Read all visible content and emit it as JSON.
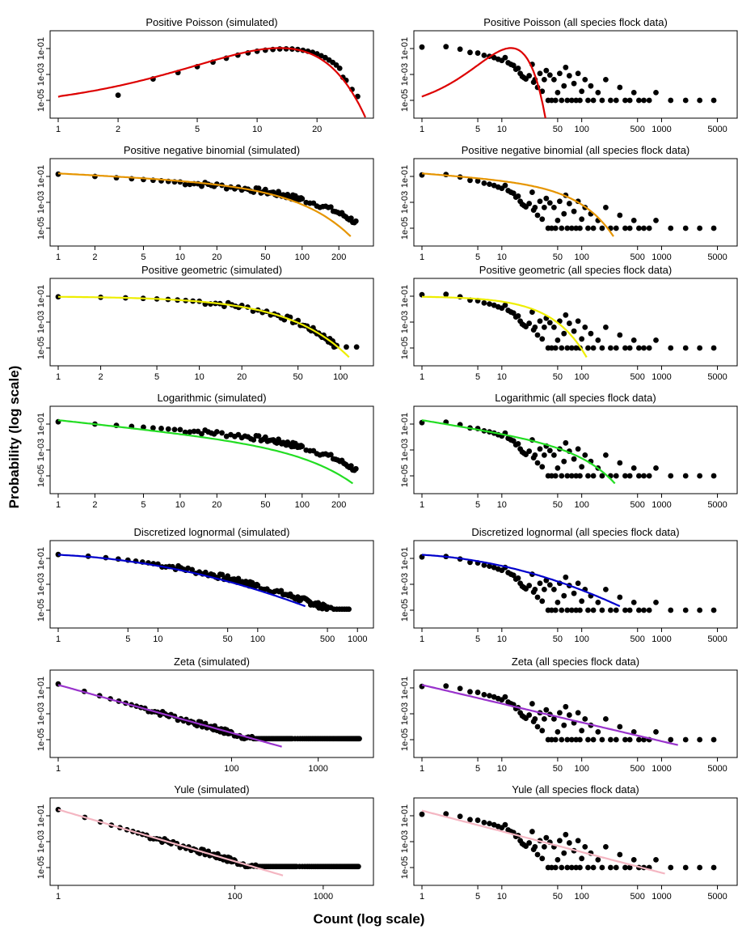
{
  "figure": {
    "xlabel": "Count (log scale)",
    "ylabel": "Probability (log scale)"
  },
  "chart_data": [
    {
      "type": "scatter",
      "title": "Positive Poisson (simulated)",
      "fit_color": "#dd0000",
      "xlog": true,
      "ylog": true,
      "xlim": [
        1,
        35
      ],
      "ylim": [
        1e-06,
        1
      ],
      "xticks": [
        1,
        2,
        5,
        10,
        20
      ],
      "xtick_labels": [
        "1",
        "2",
        "5",
        "10",
        "20"
      ],
      "yticks": [
        1e-05,
        0.001,
        0.1
      ],
      "ytick_labels": [
        "1e-05",
        "1e-03",
        "1e-01"
      ],
      "points": [
        [
          2,
          2.5e-05
        ],
        [
          3,
          0.00045
        ],
        [
          4,
          0.0014
        ],
        [
          5,
          0.004
        ],
        [
          6,
          0.009
        ],
        [
          7,
          0.018
        ],
        [
          8,
          0.031
        ],
        [
          9,
          0.046
        ],
        [
          10,
          0.062
        ],
        [
          11,
          0.075
        ],
        [
          12,
          0.085
        ],
        [
          13,
          0.093
        ],
        [
          14,
          0.095
        ],
        [
          15,
          0.092
        ],
        [
          16,
          0.085
        ],
        [
          17,
          0.074
        ],
        [
          18,
          0.062
        ],
        [
          19,
          0.051
        ],
        [
          20,
          0.039
        ],
        [
          21,
          0.028
        ],
        [
          22,
          0.02
        ],
        [
          23,
          0.013
        ],
        [
          24,
          0.0085
        ],
        [
          25,
          0.0053
        ],
        [
          26,
          0.003
        ],
        [
          27,
          0.0006
        ],
        [
          28,
          0.00035
        ],
        [
          30,
          7e-05
        ],
        [
          32,
          2e-05
        ]
      ],
      "fit": {
        "kind": "poisson",
        "mean": 13.5,
        "x": [
          1,
          35
        ]
      }
    },
    {
      "type": "scatter",
      "title": "Positive Poisson (all species flock data)",
      "fit_color": "#dd0000",
      "xlog": true,
      "ylog": true,
      "xlim": [
        1,
        7000
      ],
      "ylim": [
        1e-06,
        1
      ],
      "xticks": [
        1,
        5,
        10,
        50,
        100,
        500,
        1000,
        5000
      ],
      "xtick_labels": [
        "1",
        "5",
        "10",
        "50",
        "100",
        "500",
        "1000",
        "5000"
      ],
      "yticks": [
        1e-05,
        0.001,
        0.1
      ],
      "ytick_labels": [
        "1e-05",
        "1e-03",
        "1e-01"
      ],
      "points": "flock",
      "fit": {
        "kind": "poisson",
        "mean": 13.5,
        "x": [
          1,
          40
        ]
      }
    },
    {
      "type": "scatter",
      "title": "Positive negative binomial (simulated)",
      "fit_color": "#e69500",
      "xlog": true,
      "ylog": true,
      "xlim": [
        1,
        330
      ],
      "ylim": [
        1e-06,
        1
      ],
      "xticks": [
        1,
        2,
        5,
        10,
        20,
        50,
        100,
        200
      ],
      "xtick_labels": [
        "1",
        "2",
        "5",
        "10",
        "20",
        "50",
        "100",
        "200"
      ],
      "yticks": [
        1e-05,
        0.001,
        0.1
      ],
      "ytick_labels": [
        "1e-05",
        "1e-03",
        "1e-01"
      ],
      "points": "sim_tail",
      "fit": {
        "kind": "powerexp",
        "a": 0.17,
        "alpha": 0.45,
        "beta": 0.035,
        "x": [
          1,
          250
        ]
      }
    },
    {
      "type": "scatter",
      "title": "Positive negative binomial (all species flock data)",
      "fit_color": "#e69500",
      "xlog": true,
      "ylog": true,
      "xlim": [
        1,
        7000
      ],
      "ylim": [
        1e-06,
        1
      ],
      "xticks": [
        1,
        5,
        10,
        50,
        100,
        500,
        1000,
        5000
      ],
      "xtick_labels": [
        "1",
        "5",
        "10",
        "50",
        "100",
        "500",
        "1000",
        "5000"
      ],
      "yticks": [
        1e-05,
        0.001,
        0.1
      ],
      "ytick_labels": [
        "1e-05",
        "1e-03",
        "1e-01"
      ],
      "points": "flock",
      "fit": {
        "kind": "powerexp",
        "a": 0.17,
        "alpha": 0.45,
        "beta": 0.035,
        "x": [
          1,
          250
        ]
      }
    },
    {
      "type": "scatter",
      "title": "Positive geometric (simulated)",
      "fit_color": "#eeee00",
      "xlog": true,
      "ylog": true,
      "xlim": [
        1,
        150
      ],
      "ylim": [
        1e-06,
        1
      ],
      "xticks": [
        1,
        2,
        5,
        10,
        20,
        50,
        100
      ],
      "xtick_labels": [
        "1",
        "2",
        "5",
        "10",
        "20",
        "50",
        "100"
      ],
      "yticks": [
        1e-05,
        0.001,
        0.1
      ],
      "ytick_labels": [
        "1e-05",
        "1e-03",
        "1e-01"
      ],
      "points": "geom_sim",
      "fit": {
        "kind": "geometric",
        "p": 0.09,
        "x": [
          1,
          115
        ]
      }
    },
    {
      "type": "scatter",
      "title": "Positive geometric (all species flock data)",
      "fit_color": "#eeee00",
      "xlog": true,
      "ylog": true,
      "xlim": [
        1,
        7000
      ],
      "ylim": [
        1e-06,
        1
      ],
      "xticks": [
        1,
        5,
        10,
        50,
        100,
        500,
        1000,
        5000
      ],
      "xtick_labels": [
        "1",
        "5",
        "10",
        "50",
        "100",
        "500",
        "1000",
        "5000"
      ],
      "yticks": [
        1e-05,
        0.001,
        0.1
      ],
      "ytick_labels": [
        "1e-05",
        "1e-03",
        "1e-01"
      ],
      "points": "flock",
      "fit": {
        "kind": "geometric",
        "p": 0.09,
        "x": [
          1,
          115
        ]
      }
    },
    {
      "type": "scatter",
      "title": "Logarithmic (simulated)",
      "fit_color": "#22dd22",
      "xlog": true,
      "ylog": true,
      "xlim": [
        1,
        330
      ],
      "ylim": [
        1e-06,
        1
      ],
      "xticks": [
        1,
        2,
        5,
        10,
        20,
        50,
        100,
        200
      ],
      "xtick_labels": [
        "1",
        "2",
        "5",
        "10",
        "20",
        "50",
        "100",
        "200"
      ],
      "yticks": [
        1e-05,
        0.001,
        0.1
      ],
      "ytick_labels": [
        "1e-05",
        "1e-03",
        "1e-01"
      ],
      "points": "sim_tail",
      "fit": {
        "kind": "powerexp",
        "a": 0.2,
        "alpha": 1.0,
        "beta": 0.022,
        "x": [
          1,
          260
        ]
      }
    },
    {
      "type": "scatter",
      "title": "Logarithmic (all species flock data)",
      "fit_color": "#22dd22",
      "xlog": true,
      "ylog": true,
      "xlim": [
        1,
        7000
      ],
      "ylim": [
        1e-06,
        1
      ],
      "xticks": [
        1,
        5,
        10,
        50,
        100,
        500,
        1000,
        5000
      ],
      "xtick_labels": [
        "1",
        "5",
        "10",
        "50",
        "100",
        "500",
        "1000",
        "5000"
      ],
      "yticks": [
        1e-05,
        0.001,
        0.1
      ],
      "ytick_labels": [
        "1e-05",
        "1e-03",
        "1e-01"
      ],
      "points": "flock",
      "fit": {
        "kind": "powerexp",
        "a": 0.2,
        "alpha": 1.0,
        "beta": 0.022,
        "x": [
          1,
          260
        ]
      }
    },
    {
      "type": "scatter",
      "title": "Discretized lognormal (simulated)",
      "fit_color": "#0000cc",
      "xlog": true,
      "ylog": true,
      "xlim": [
        1,
        1200
      ],
      "ylim": [
        1e-06,
        1
      ],
      "xticks": [
        1,
        5,
        10,
        50,
        100,
        500,
        1000
      ],
      "xtick_labels": [
        "1",
        "5",
        "10",
        "50",
        "100",
        "500",
        "1000"
      ],
      "yticks": [
        1e-05,
        0.001,
        0.1
      ],
      "ytick_labels": [
        "1e-05",
        "1e-03",
        "1e-01"
      ],
      "points": "lognorm_sim",
      "fit": {
        "kind": "lognormal",
        "a": 0.19,
        "b": 0.35,
        "c": 0.22,
        "x": [
          1,
          300
        ]
      }
    },
    {
      "type": "scatter",
      "title": "Discretized lognormal (all species flock data)",
      "fit_color": "#0000cc",
      "xlog": true,
      "ylog": true,
      "xlim": [
        1,
        7000
      ],
      "ylim": [
        1e-06,
        1
      ],
      "xticks": [
        1,
        5,
        10,
        50,
        100,
        500,
        1000,
        5000
      ],
      "xtick_labels": [
        "1",
        "5",
        "10",
        "50",
        "100",
        "500",
        "1000",
        "5000"
      ],
      "yticks": [
        1e-05,
        0.001,
        0.1
      ],
      "ytick_labels": [
        "1e-05",
        "1e-03",
        "1e-01"
      ],
      "points": "flock",
      "fit": {
        "kind": "lognormal",
        "a": 0.19,
        "b": 0.35,
        "c": 0.22,
        "x": [
          1,
          300
        ]
      }
    },
    {
      "type": "scatter",
      "title": "Zeta (simulated)",
      "fit_color": "#9933cc",
      "xlog": true,
      "ylog": true,
      "xlim": [
        1,
        3500
      ],
      "ylim": [
        1e-06,
        1
      ],
      "xticks": [
        1,
        100,
        1000
      ],
      "xtick_labels": [
        "1",
        "100",
        "1000"
      ],
      "yticks": [
        1e-05,
        0.001,
        0.1
      ],
      "ytick_labels": [
        "1e-05",
        "1e-03",
        "1e-01"
      ],
      "points": "zeta_sim",
      "fit": {
        "kind": "power",
        "a": 0.17,
        "alpha": 1.85,
        "x": [
          1,
          380
        ]
      }
    },
    {
      "type": "scatter",
      "title": "Zeta (all species flock data)",
      "fit_color": "#9933cc",
      "xlog": true,
      "ylog": true,
      "xlim": [
        1,
        7000
      ],
      "ylim": [
        1e-06,
        1
      ],
      "xticks": [
        1,
        5,
        10,
        50,
        100,
        500,
        1000,
        5000
      ],
      "xtick_labels": [
        "1",
        "5",
        "10",
        "50",
        "100",
        "500",
        "1000",
        "5000"
      ],
      "yticks": [
        1e-05,
        0.001,
        0.1
      ],
      "ytick_labels": [
        "1e-05",
        "1e-03",
        "1e-01"
      ],
      "points": "flock",
      "fit": {
        "kind": "power",
        "a": 0.17,
        "alpha": 1.45,
        "x": [
          1,
          1600
        ]
      }
    },
    {
      "type": "scatter",
      "title": "Yule (simulated)",
      "fit_color": "#f4b6c2",
      "xlog": true,
      "ylog": true,
      "xlim": [
        1,
        3000
      ],
      "ylim": [
        1e-06,
        1
      ],
      "xticks": [
        1,
        100,
        1000
      ],
      "xtick_labels": [
        "1",
        "100",
        "1000"
      ],
      "yticks": [
        1e-05,
        0.001,
        0.1
      ],
      "ytick_labels": [
        "1e-05",
        "1e-03",
        "1e-01"
      ],
      "points": "yule_sim",
      "fit": {
        "kind": "power",
        "a": 0.3,
        "alpha": 2.0,
        "x": [
          1,
          350
        ]
      }
    },
    {
      "type": "scatter",
      "title": "Yule (all species flock data)",
      "fit_color": "#f4b6c2",
      "xlog": true,
      "ylog": true,
      "xlim": [
        1,
        7000
      ],
      "ylim": [
        1e-06,
        1
      ],
      "xticks": [
        1,
        5,
        10,
        50,
        100,
        500,
        1000,
        5000
      ],
      "xtick_labels": [
        "1",
        "5",
        "10",
        "50",
        "100",
        "500",
        "1000",
        "5000"
      ],
      "yticks": [
        1e-05,
        0.001,
        0.1
      ],
      "ytick_labels": [
        "1e-05",
        "1e-03",
        "1e-01"
      ],
      "points": "flock",
      "fit": {
        "kind": "power",
        "a": 0.25,
        "alpha": 1.6,
        "x": [
          1,
          1100
        ]
      }
    }
  ],
  "point_sets": {
    "flock": [
      [
        1,
        0.13
      ],
      [
        2,
        0.14
      ],
      [
        3,
        0.09
      ],
      [
        4,
        0.05
      ],
      [
        5,
        0.045
      ],
      [
        6,
        0.03
      ],
      [
        7,
        0.025
      ],
      [
        8,
        0.02
      ],
      [
        9,
        0.015
      ],
      [
        10,
        0.012
      ],
      [
        11,
        0.02
      ],
      [
        12,
        0.008
      ],
      [
        13,
        0.006
      ],
      [
        14,
        0.005
      ],
      [
        15,
        0.0025
      ],
      [
        16,
        0.003
      ],
      [
        17,
        0.0012
      ],
      [
        18,
        0.0007
      ],
      [
        19,
        0.00055
      ],
      [
        20,
        0.00045
      ],
      [
        22,
        0.0008
      ],
      [
        24,
        0.006
      ],
      [
        25,
        0.00025
      ],
      [
        26,
        0.0004
      ],
      [
        28,
        0.0001
      ],
      [
        30,
        0.0012
      ],
      [
        32,
        5e-05
      ],
      [
        34,
        0.0004
      ],
      [
        36,
        0.002
      ],
      [
        38,
        1e-05
      ],
      [
        40,
        0.0009
      ],
      [
        42,
        1e-05
      ],
      [
        45,
        0.0004
      ],
      [
        47,
        1e-05
      ],
      [
        50,
        4e-05
      ],
      [
        53,
        0.0012
      ],
      [
        56,
        1e-05
      ],
      [
        60,
        0.00013
      ],
      [
        63,
        0.0035
      ],
      [
        66,
        1e-05
      ],
      [
        70,
        0.0008
      ],
      [
        75,
        1e-05
      ],
      [
        80,
        0.0002
      ],
      [
        85,
        1e-05
      ],
      [
        90,
        0.0012
      ],
      [
        95,
        1e-05
      ],
      [
        100,
        5e-05
      ],
      [
        110,
        0.0004
      ],
      [
        120,
        1e-05
      ],
      [
        130,
        0.00013
      ],
      [
        140,
        1e-05
      ],
      [
        160,
        4e-05
      ],
      [
        180,
        1e-05
      ],
      [
        200,
        0.0004
      ],
      [
        230,
        1e-05
      ],
      [
        270,
        1e-05
      ],
      [
        300,
        0.0001
      ],
      [
        350,
        1e-05
      ],
      [
        400,
        1e-05
      ],
      [
        450,
        4e-05
      ],
      [
        520,
        1e-05
      ],
      [
        600,
        1e-05
      ],
      [
        700,
        1e-05
      ],
      [
        850,
        4e-05
      ],
      [
        1300,
        1e-05
      ],
      [
        2000,
        1e-05
      ],
      [
        3000,
        1e-05
      ],
      [
        4500,
        1e-05
      ]
    ],
    "sim_tail": {
      "gen": "powerexp",
      "a": 0.15,
      "alpha": 0.55,
      "beta": 0.02,
      "xmax": 280
    },
    "geom_sim": {
      "gen": "geometric",
      "p": 0.09,
      "xmax": 95,
      "extra": [
        [
          90,
          1.2e-05
        ],
        [
          110,
          1.2e-05
        ],
        [
          130,
          1.2e-05
        ]
      ]
    },
    "lognorm_sim": {
      "gen": "lognormal",
      "a": 0.2,
      "b": 0.3,
      "c": 0.2,
      "xmax": 850
    },
    "zeta_sim": {
      "gen": "power",
      "a": 0.2,
      "alpha": 1.9,
      "xmax": 3000
    },
    "yule_sim": {
      "gen": "power",
      "a": 0.3,
      "alpha": 2.0,
      "xmax": 2500
    }
  }
}
